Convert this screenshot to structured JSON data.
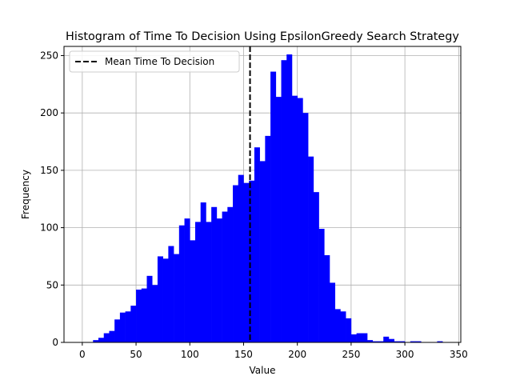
{
  "chart_data": {
    "type": "bar",
    "title": "Histogram of Time To Decision Using EpsilonGreedy Search Strategy",
    "xlabel": "Value",
    "ylabel": "Frequency",
    "xlim": [
      -17,
      352
    ],
    "ylim": [
      0,
      258
    ],
    "xticks": [
      0,
      50,
      100,
      150,
      200,
      250,
      300,
      350
    ],
    "yticks": [
      0,
      50,
      100,
      150,
      200,
      250
    ],
    "grid": true,
    "legend_position": "top-left",
    "bar_color": "#0000ff",
    "bin_width": 5,
    "bins": [
      {
        "x": 10,
        "v": 2
      },
      {
        "x": 15,
        "v": 4
      },
      {
        "x": 20,
        "v": 8
      },
      {
        "x": 25,
        "v": 10
      },
      {
        "x": 30,
        "v": 20
      },
      {
        "x": 35,
        "v": 26
      },
      {
        "x": 40,
        "v": 27
      },
      {
        "x": 45,
        "v": 32
      },
      {
        "x": 50,
        "v": 46
      },
      {
        "x": 55,
        "v": 47
      },
      {
        "x": 60,
        "v": 58
      },
      {
        "x": 65,
        "v": 50
      },
      {
        "x": 70,
        "v": 75
      },
      {
        "x": 75,
        "v": 73
      },
      {
        "x": 80,
        "v": 84
      },
      {
        "x": 85,
        "v": 77
      },
      {
        "x": 90,
        "v": 102
      },
      {
        "x": 95,
        "v": 108
      },
      {
        "x": 100,
        "v": 89
      },
      {
        "x": 105,
        "v": 105
      },
      {
        "x": 110,
        "v": 122
      },
      {
        "x": 115,
        "v": 105
      },
      {
        "x": 120,
        "v": 118
      },
      {
        "x": 125,
        "v": 108
      },
      {
        "x": 130,
        "v": 114
      },
      {
        "x": 135,
        "v": 118
      },
      {
        "x": 140,
        "v": 137
      },
      {
        "x": 145,
        "v": 146
      },
      {
        "x": 150,
        "v": 139
      },
      {
        "x": 155,
        "v": 141
      },
      {
        "x": 160,
        "v": 170
      },
      {
        "x": 165,
        "v": 158
      },
      {
        "x": 170,
        "v": 180
      },
      {
        "x": 175,
        "v": 236
      },
      {
        "x": 180,
        "v": 214
      },
      {
        "x": 185,
        "v": 246
      },
      {
        "x": 190,
        "v": 251
      },
      {
        "x": 195,
        "v": 215
      },
      {
        "x": 200,
        "v": 213
      },
      {
        "x": 205,
        "v": 200
      },
      {
        "x": 210,
        "v": 162
      },
      {
        "x": 215,
        "v": 131
      },
      {
        "x": 220,
        "v": 99
      },
      {
        "x": 225,
        "v": 76
      },
      {
        "x": 230,
        "v": 52
      },
      {
        "x": 235,
        "v": 29
      },
      {
        "x": 240,
        "v": 27
      },
      {
        "x": 245,
        "v": 21
      },
      {
        "x": 250,
        "v": 7
      },
      {
        "x": 255,
        "v": 8
      },
      {
        "x": 260,
        "v": 8
      },
      {
        "x": 265,
        "v": 2
      },
      {
        "x": 270,
        "v": 1
      },
      {
        "x": 275,
        "v": 1
      },
      {
        "x": 280,
        "v": 5
      },
      {
        "x": 285,
        "v": 3
      },
      {
        "x": 290,
        "v": 1
      },
      {
        "x": 295,
        "v": 1
      },
      {
        "x": 305,
        "v": 1
      },
      {
        "x": 310,
        "v": 1
      },
      {
        "x": 330,
        "v": 1
      }
    ],
    "mean_line": {
      "x": 156,
      "label": "Mean Time To Decision",
      "style": "dashed",
      "color": "#000000"
    }
  }
}
